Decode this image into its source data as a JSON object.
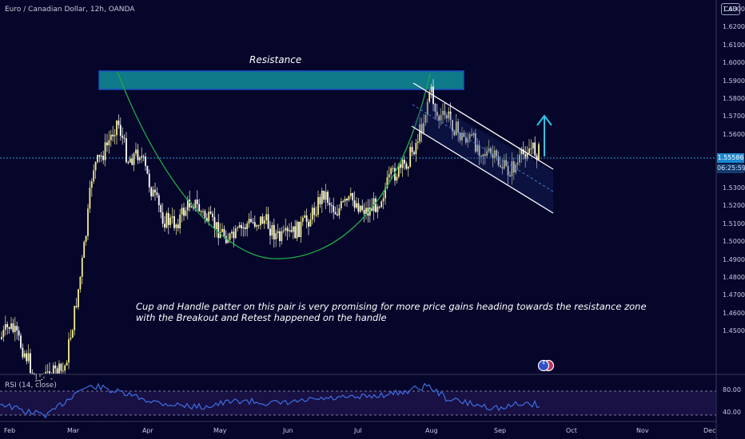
{
  "header": {
    "symbol_title": "Euro / Canadian Dollar, 12h, OANDA",
    "currency_badge": "CAD"
  },
  "price_axis": {
    "ticks": [
      "1.63000",
      "1.62000",
      "1.61000",
      "1.60000",
      "1.59000",
      "1.58000",
      "1.57000",
      "1.56000",
      "1.54000",
      "1.53000",
      "1.52000",
      "1.51000",
      "1.50000",
      "1.49000",
      "1.48000",
      "1.47000",
      "1.46000",
      "1.45000"
    ],
    "current_price": "1.55586",
    "countdown": "06:25:59"
  },
  "time_axis": {
    "labels": [
      "Feb",
      "Mar",
      "Apr",
      "May",
      "Jun",
      "Jul",
      "Aug",
      "Sep",
      "Oct",
      "Nov",
      "Dec"
    ]
  },
  "annotations": {
    "resistance_label": "Resistance",
    "note_text": "Cup and Handle patter on this pair is very promising for more price gains heading towards the resistance zone with the Breakout and Retest happened on the handle"
  },
  "rsi": {
    "legend": "RSI (14, close)",
    "ticks": [
      "80.00",
      "40.00"
    ]
  },
  "event_badge": {
    "icon": "earnings-event-icon",
    "count": "4"
  },
  "colors": {
    "background": "#06052a",
    "candle_up": "#f5f08a",
    "candle_down": "#ffffff",
    "resistance_zone": "#0e7a8a",
    "cup_curve": "#22a84a",
    "channel": "#ffffff",
    "arrow": "#2ec4e6",
    "rsi_line": "#3d6fe0"
  }
}
